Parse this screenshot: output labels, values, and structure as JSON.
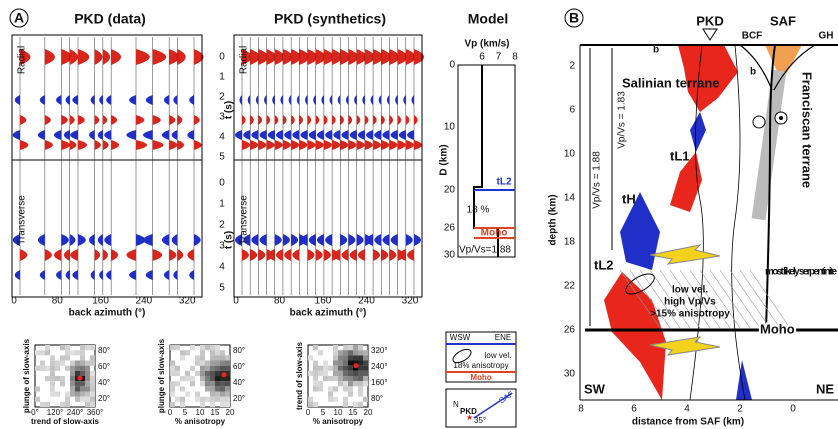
{
  "panel_a": {
    "label": "A",
    "data_title": "PKD (data)",
    "synth_title": "PKD (synthetics)",
    "model_title": "Model",
    "radial": "Radial",
    "transverse": "Transverse",
    "t_label": "t (s)",
    "t_ticks": [
      0,
      1,
      2,
      3,
      4,
      5
    ],
    "baz_ticks": [
      0,
      80,
      160,
      240,
      320
    ],
    "baz_label": "back azimuth (°)",
    "model": {
      "vp_label": "Vp (km/s)",
      "vp_ticks": [
        6,
        7,
        8
      ],
      "depth_label": "D (km)",
      "depth_ticks": [
        0,
        10,
        20,
        26,
        30
      ],
      "layer": "tL2",
      "anisotropy": "18 %",
      "moho": "Moho",
      "vpvs": "Vp/Vs=1.88"
    },
    "legend": {
      "left": "WSW",
      "right": "ENE",
      "low_vel": "low vel.",
      "anisotropy": "18% anisotropy",
      "moho": "Moho"
    },
    "map": {
      "north": "N",
      "fault": "SAF",
      "station": "PKD",
      "angle": "35°"
    },
    "histograms": [
      {
        "x_label": "trend of slow-axis",
        "y_label": "plunge of slow-axis",
        "x_ticks": [
          "0°",
          "120°",
          "240°",
          "360°"
        ],
        "y_ticks": [
          "80°",
          "60°",
          "40°",
          "20°"
        ]
      },
      {
        "x_label": "% anisotropy",
        "y_label": "plunge of slow-axis",
        "x_ticks": [
          0,
          5,
          10,
          15,
          20
        ],
        "y_ticks": [
          "80°",
          "60°",
          "40°",
          "20°"
        ]
      },
      {
        "x_label": "% anisotropy",
        "y_label": "trend of slow-axis",
        "x_ticks": [
          0,
          5,
          10,
          15,
          20
        ],
        "y_ticks": [
          "320°",
          "240°",
          "160°",
          "80°"
        ]
      }
    ]
  },
  "panel_b": {
    "label": "B",
    "station": "PKD",
    "fault": "SAF",
    "bcf": "BCF",
    "gh": "GH",
    "b_top": "b",
    "b_mid": "b",
    "salinian": "Salinian terrane",
    "franciscan": "Franciscan terrane",
    "vpvs_upper": "Vp/Vs = 1.83",
    "vpvs_lower": "Vp/Vs = 1.88",
    "tl1": "tL1",
    "th": "tH",
    "tl2": "tL2",
    "serpentinite": "most likely serpentinite",
    "zone": [
      "low vel.",
      "high Vp/Vs",
      ">15% anisotropy"
    ],
    "moho": "Moho",
    "sw": "SW",
    "ne": "NE",
    "depth_label": "depth (km)",
    "depth_ticks": [
      2,
      6,
      10,
      14,
      18,
      22,
      26,
      30
    ],
    "distance_label": "distance from SAF (km)",
    "distance_ticks": [
      8,
      6,
      4,
      2,
      0
    ]
  }
}
